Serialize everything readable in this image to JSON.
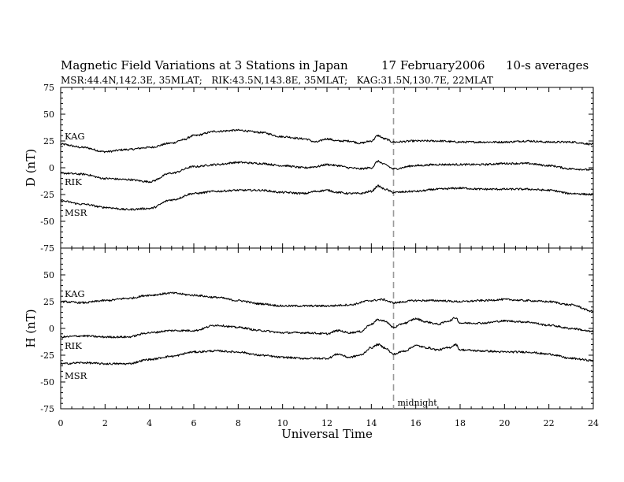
{
  "header": {
    "title": "Magnetic Field Variations at 3 Stations in Japan",
    "date": "17 February2006",
    "averaging": "10-s averages",
    "subtitle": "MSR:44.4N,142.3E, 35MLAT;   RIK:43.5N,143.8E, 35MLAT;   KAG:31.5N,130.7E, 22MLAT"
  },
  "chart_data": {
    "type": "line",
    "x": {
      "label": "Universal Time",
      "range": [
        0,
        24
      ],
      "ticks": [
        0,
        2,
        4,
        6,
        8,
        10,
        12,
        14,
        16,
        18,
        20,
        22,
        24
      ],
      "unit": "hours UT"
    },
    "annotations": [
      {
        "type": "vertical-dashed-line",
        "x": 15,
        "label": "midnight"
      }
    ],
    "panels": [
      {
        "id": "D",
        "ylabel": "D (nT)",
        "ylim": [
          -75,
          75
        ],
        "yticks": [
          75,
          50,
          25,
          0,
          -25,
          -50,
          -75
        ],
        "series": [
          {
            "name": "KAG",
            "color": "#000000",
            "t": [
              0,
              1,
              2,
              3,
              4,
              5,
              5.5,
              6,
              7,
              8,
              9,
              10,
              11,
              11.5,
              12,
              12.5,
              13,
              13.5,
              14,
              14.3,
              14.6,
              15,
              16,
              17,
              18,
              19,
              20,
              21,
              22,
              23,
              24
            ],
            "values": [
              22,
              19,
              15,
              17,
              19,
              23,
              26,
              30,
              34,
              35,
              33,
              29,
              27,
              24,
              27,
              25,
              25,
              23,
              25,
              30,
              27,
              24,
              25,
              25,
              24,
              24,
              24,
              25,
              24,
              24,
              22
            ]
          },
          {
            "name": "RIK",
            "color": "#000000",
            "t": [
              0,
              1,
              2,
              3,
              4,
              5,
              6,
              7,
              8,
              9,
              10,
              11,
              11.5,
              12,
              12.5,
              13,
              13.5,
              14,
              14.3,
              14.6,
              15,
              16,
              17,
              18,
              19,
              20,
              21,
              22,
              23,
              24
            ],
            "values": [
              -5,
              -6,
              -10,
              -11,
              -13,
              -5,
              1,
              3,
              5,
              4,
              2,
              0,
              1,
              3,
              2,
              0,
              -1,
              0,
              6,
              3,
              -1,
              2,
              3,
              3,
              3,
              4,
              4,
              2,
              -1,
              -2
            ]
          },
          {
            "name": "MSR",
            "color": "#000000",
            "t": [
              0,
              1,
              2,
              3,
              4,
              5,
              6,
              7,
              8,
              9,
              10,
              11,
              11.5,
              12,
              12.5,
              13,
              13.5,
              14,
              14.3,
              14.6,
              15,
              16,
              17,
              18,
              19,
              20,
              21,
              22,
              23,
              24
            ],
            "values": [
              -31,
              -34,
              -37,
              -39,
              -38,
              -30,
              -24,
              -22,
              -21,
              -21,
              -23,
              -24,
              -22,
              -21,
              -23,
              -24,
              -24,
              -22,
              -17,
              -20,
              -23,
              -22,
              -20,
              -19,
              -20,
              -20,
              -20,
              -21,
              -24,
              -25
            ]
          }
        ]
      },
      {
        "id": "H",
        "ylabel": "H (nT)",
        "ylim": [
          -75,
          75
        ],
        "yticks": [
          75,
          50,
          25,
          0,
          -25,
          -50,
          -75
        ],
        "series": [
          {
            "name": "KAG",
            "color": "#000000",
            "t": [
              0,
              1,
              2,
              3,
              4,
              5,
              6,
              7,
              8,
              9,
              10,
              11,
              12,
              13,
              14,
              14.5,
              15,
              16,
              17,
              18,
              19,
              20,
              21,
              22,
              23,
              24
            ],
            "values": [
              25,
              24,
              26,
              28,
              31,
              33,
              31,
              29,
              26,
              23,
              21,
              21,
              21,
              22,
              26,
              27,
              24,
              26,
              26,
              25,
              26,
              27,
              26,
              25,
              22,
              16
            ]
          },
          {
            "name": "RIK",
            "color": "#000000",
            "t": [
              0,
              1,
              2,
              3,
              4,
              5,
              6,
              7,
              8,
              9,
              10,
              11,
              12,
              12.5,
              13,
              13.5,
              14,
              14.3,
              14.6,
              15,
              15.5,
              16,
              16.5,
              17,
              17.5,
              17.8,
              18,
              19,
              20,
              21,
              22,
              23,
              24
            ],
            "values": [
              -8,
              -7,
              -8,
              -8,
              -4,
              -2,
              -2,
              3,
              1,
              -2,
              -4,
              -4,
              -5,
              -2,
              -4,
              -3,
              4,
              8,
              7,
              1,
              5,
              9,
              6,
              4,
              7,
              10,
              5,
              5,
              7,
              6,
              3,
              0,
              -3
            ]
          },
          {
            "name": "MSR",
            "color": "#000000",
            "t": [
              0,
              1,
              2,
              3,
              4,
              5,
              6,
              7,
              8,
              9,
              10,
              11,
              12,
              12.5,
              13,
              13.5,
              14,
              14.3,
              14.6,
              15,
              15.5,
              16,
              16.5,
              17,
              17.5,
              17.8,
              18,
              19,
              20,
              21,
              22,
              23,
              24
            ],
            "values": [
              -33,
              -32,
              -33,
              -33,
              -29,
              -26,
              -22,
              -21,
              -22,
              -25,
              -27,
              -28,
              -28,
              -24,
              -27,
              -25,
              -18,
              -15,
              -18,
              -24,
              -21,
              -16,
              -18,
              -20,
              -18,
              -15,
              -20,
              -21,
              -22,
              -22,
              -24,
              -28,
              -30
            ]
          }
        ]
      }
    ]
  }
}
